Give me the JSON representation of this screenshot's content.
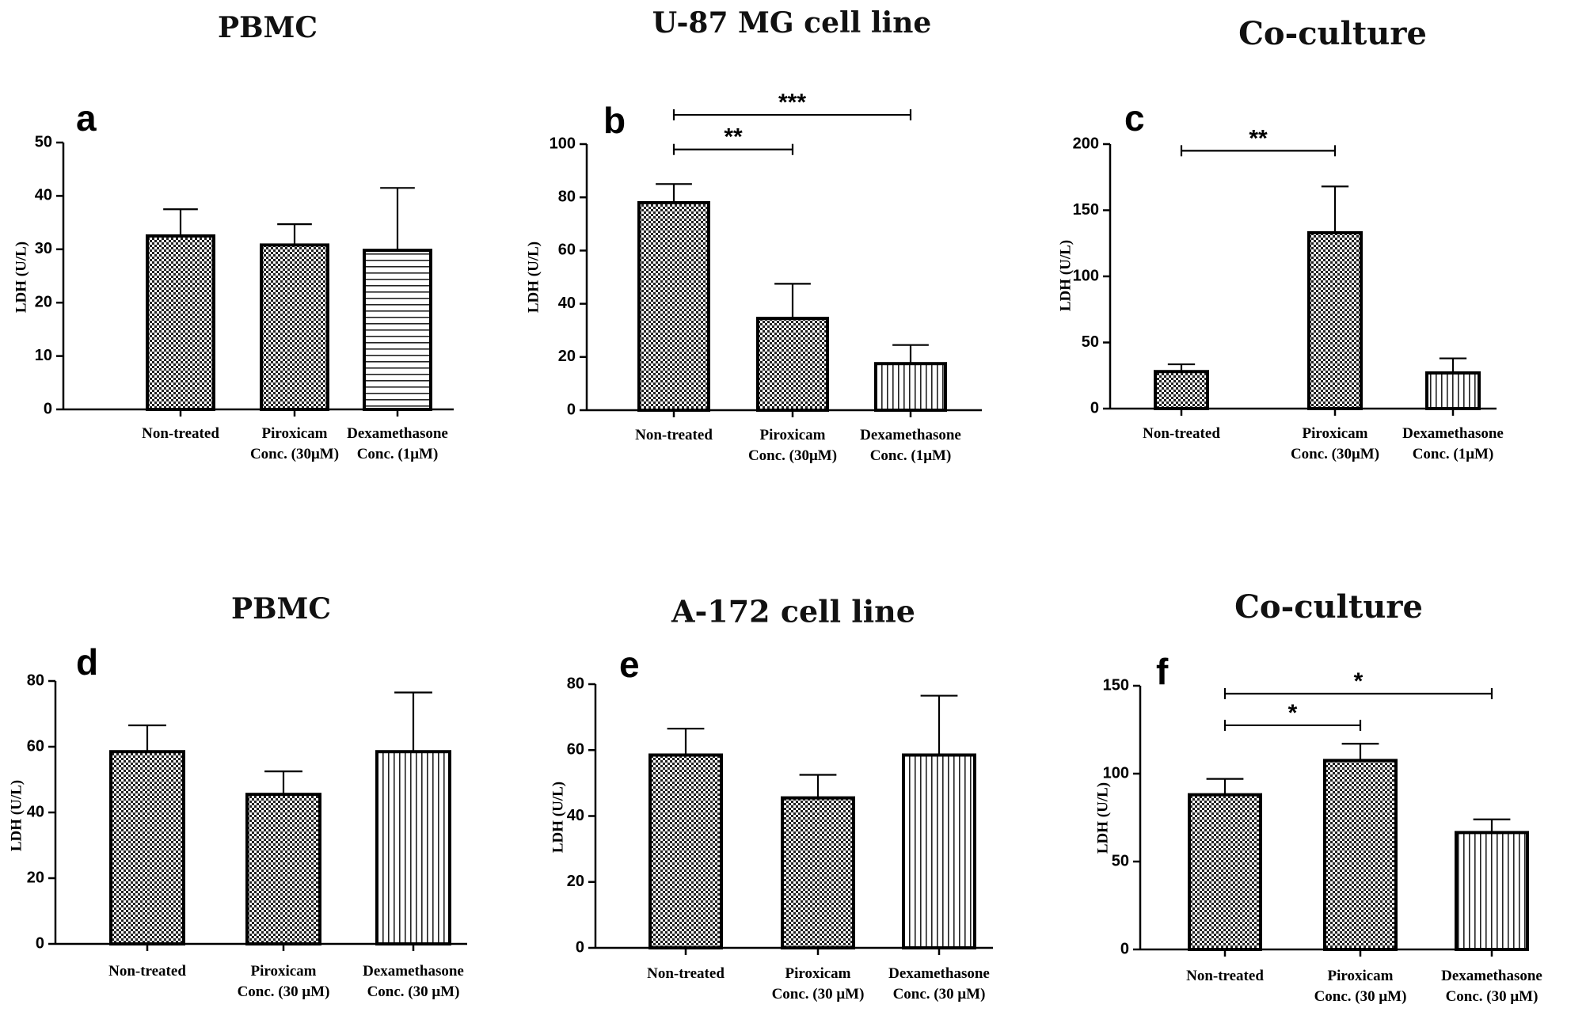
{
  "chart_data": [
    {
      "type": "bar",
      "panel": "a",
      "title": "PBMC",
      "ylabel": "LDH (U/L)",
      "ylim": [
        0,
        50
      ],
      "yticks": [
        0,
        10,
        20,
        30,
        40,
        50
      ],
      "categories": [
        [
          "Non-treated"
        ],
        [
          "Piroxicam",
          "Conc. (30μM)"
        ],
        [
          "Dexamethasone",
          "Conc. (1μM)"
        ]
      ],
      "values": [
        32.5,
        30.8,
        29.8
      ],
      "errors": [
        37.5,
        34.7,
        41.5
      ],
      "patterns": [
        "check",
        "check",
        "hlines"
      ],
      "significance": []
    },
    {
      "type": "bar",
      "panel": "b",
      "title": "U-87 MG cell line",
      "ylabel": "LDH (U/L)",
      "ylim": [
        0,
        100
      ],
      "yticks": [
        0,
        20,
        40,
        60,
        80,
        100
      ],
      "categories": [
        [
          "Non-treated"
        ],
        [
          "Piroxicam",
          "Conc. (30μM)"
        ],
        [
          "Dexamethasone",
          "Conc. (1μM)"
        ]
      ],
      "values": [
        78,
        34.5,
        17.5
      ],
      "errors": [
        85,
        47.5,
        24.5
      ],
      "patterns": [
        "check",
        "check",
        "vlines"
      ],
      "significance": [
        {
          "from": 0,
          "to": 1,
          "label": "**",
          "y": 98
        },
        {
          "from": 0,
          "to": 2,
          "label": "***",
          "y": 111
        }
      ]
    },
    {
      "type": "bar",
      "panel": "c",
      "title": "Co-culture",
      "ylabel": "LDH (U/L)",
      "ylim": [
        0,
        200
      ],
      "yticks": [
        0,
        50,
        100,
        150,
        200
      ],
      "categories": [
        [
          "Non-treated"
        ],
        [
          "Piroxicam",
          "Conc. (30μM)"
        ],
        [
          "Dexamethasone",
          "Conc. (1μM)"
        ]
      ],
      "values": [
        28,
        133,
        27
      ],
      "errors": [
        33.5,
        168,
        38
      ],
      "patterns": [
        "check",
        "check",
        "vlines"
      ],
      "significance": [
        {
          "from": 0,
          "to": 1,
          "label": "**",
          "y": 195
        }
      ]
    },
    {
      "type": "bar",
      "panel": "d",
      "title": "PBMC",
      "ylabel": "LDH (U/L)",
      "ylim": [
        0,
        80
      ],
      "yticks": [
        0,
        20,
        40,
        60,
        80
      ],
      "categories": [
        [
          "Non-treated"
        ],
        [
          "Piroxicam",
          "Conc. (30 μM)"
        ],
        [
          "Dexamethasone",
          "Conc. (30 μM)"
        ]
      ],
      "values": [
        58.5,
        45.5,
        58.5
      ],
      "errors": [
        66.5,
        52.5,
        76.5
      ],
      "patterns": [
        "check",
        "check",
        "vlines"
      ],
      "significance": []
    },
    {
      "type": "bar",
      "panel": "e",
      "title": "A-172 cell line",
      "ylabel": "LDH (U/L)",
      "ylim": [
        0,
        80
      ],
      "yticks": [
        0,
        20,
        40,
        60,
        80
      ],
      "categories": [
        [
          "Non-treated"
        ],
        [
          "Piroxicam",
          "Conc. (30 μM)"
        ],
        [
          "Dexamethasone",
          "Conc. (30 μM)"
        ]
      ],
      "values": [
        58.5,
        45.5,
        58.5
      ],
      "errors": [
        66.5,
        52.5,
        76.5
      ],
      "patterns": [
        "check",
        "check",
        "vlines"
      ],
      "significance": []
    },
    {
      "type": "bar",
      "panel": "f",
      "title": "Co-culture",
      "ylabel": "LDH (U/L)",
      "ylim": [
        0,
        150
      ],
      "yticks": [
        0,
        50,
        100,
        150
      ],
      "categories": [
        [
          "Non-treated"
        ],
        [
          "Piroxicam",
          "Conc. (30 μM)"
        ],
        [
          "Dexamethasone",
          "Conc. (30 μM)"
        ]
      ],
      "values": [
        88,
        107.5,
        66.5
      ],
      "errors": [
        97,
        117,
        74
      ],
      "patterns": [
        "check",
        "check",
        "vlines"
      ],
      "significance": [
        {
          "from": 0,
          "to": 1,
          "label": "*",
          "y": 127.5
        },
        {
          "from": 0,
          "to": 2,
          "label": "*",
          "y": 145.5
        }
      ]
    }
  ]
}
